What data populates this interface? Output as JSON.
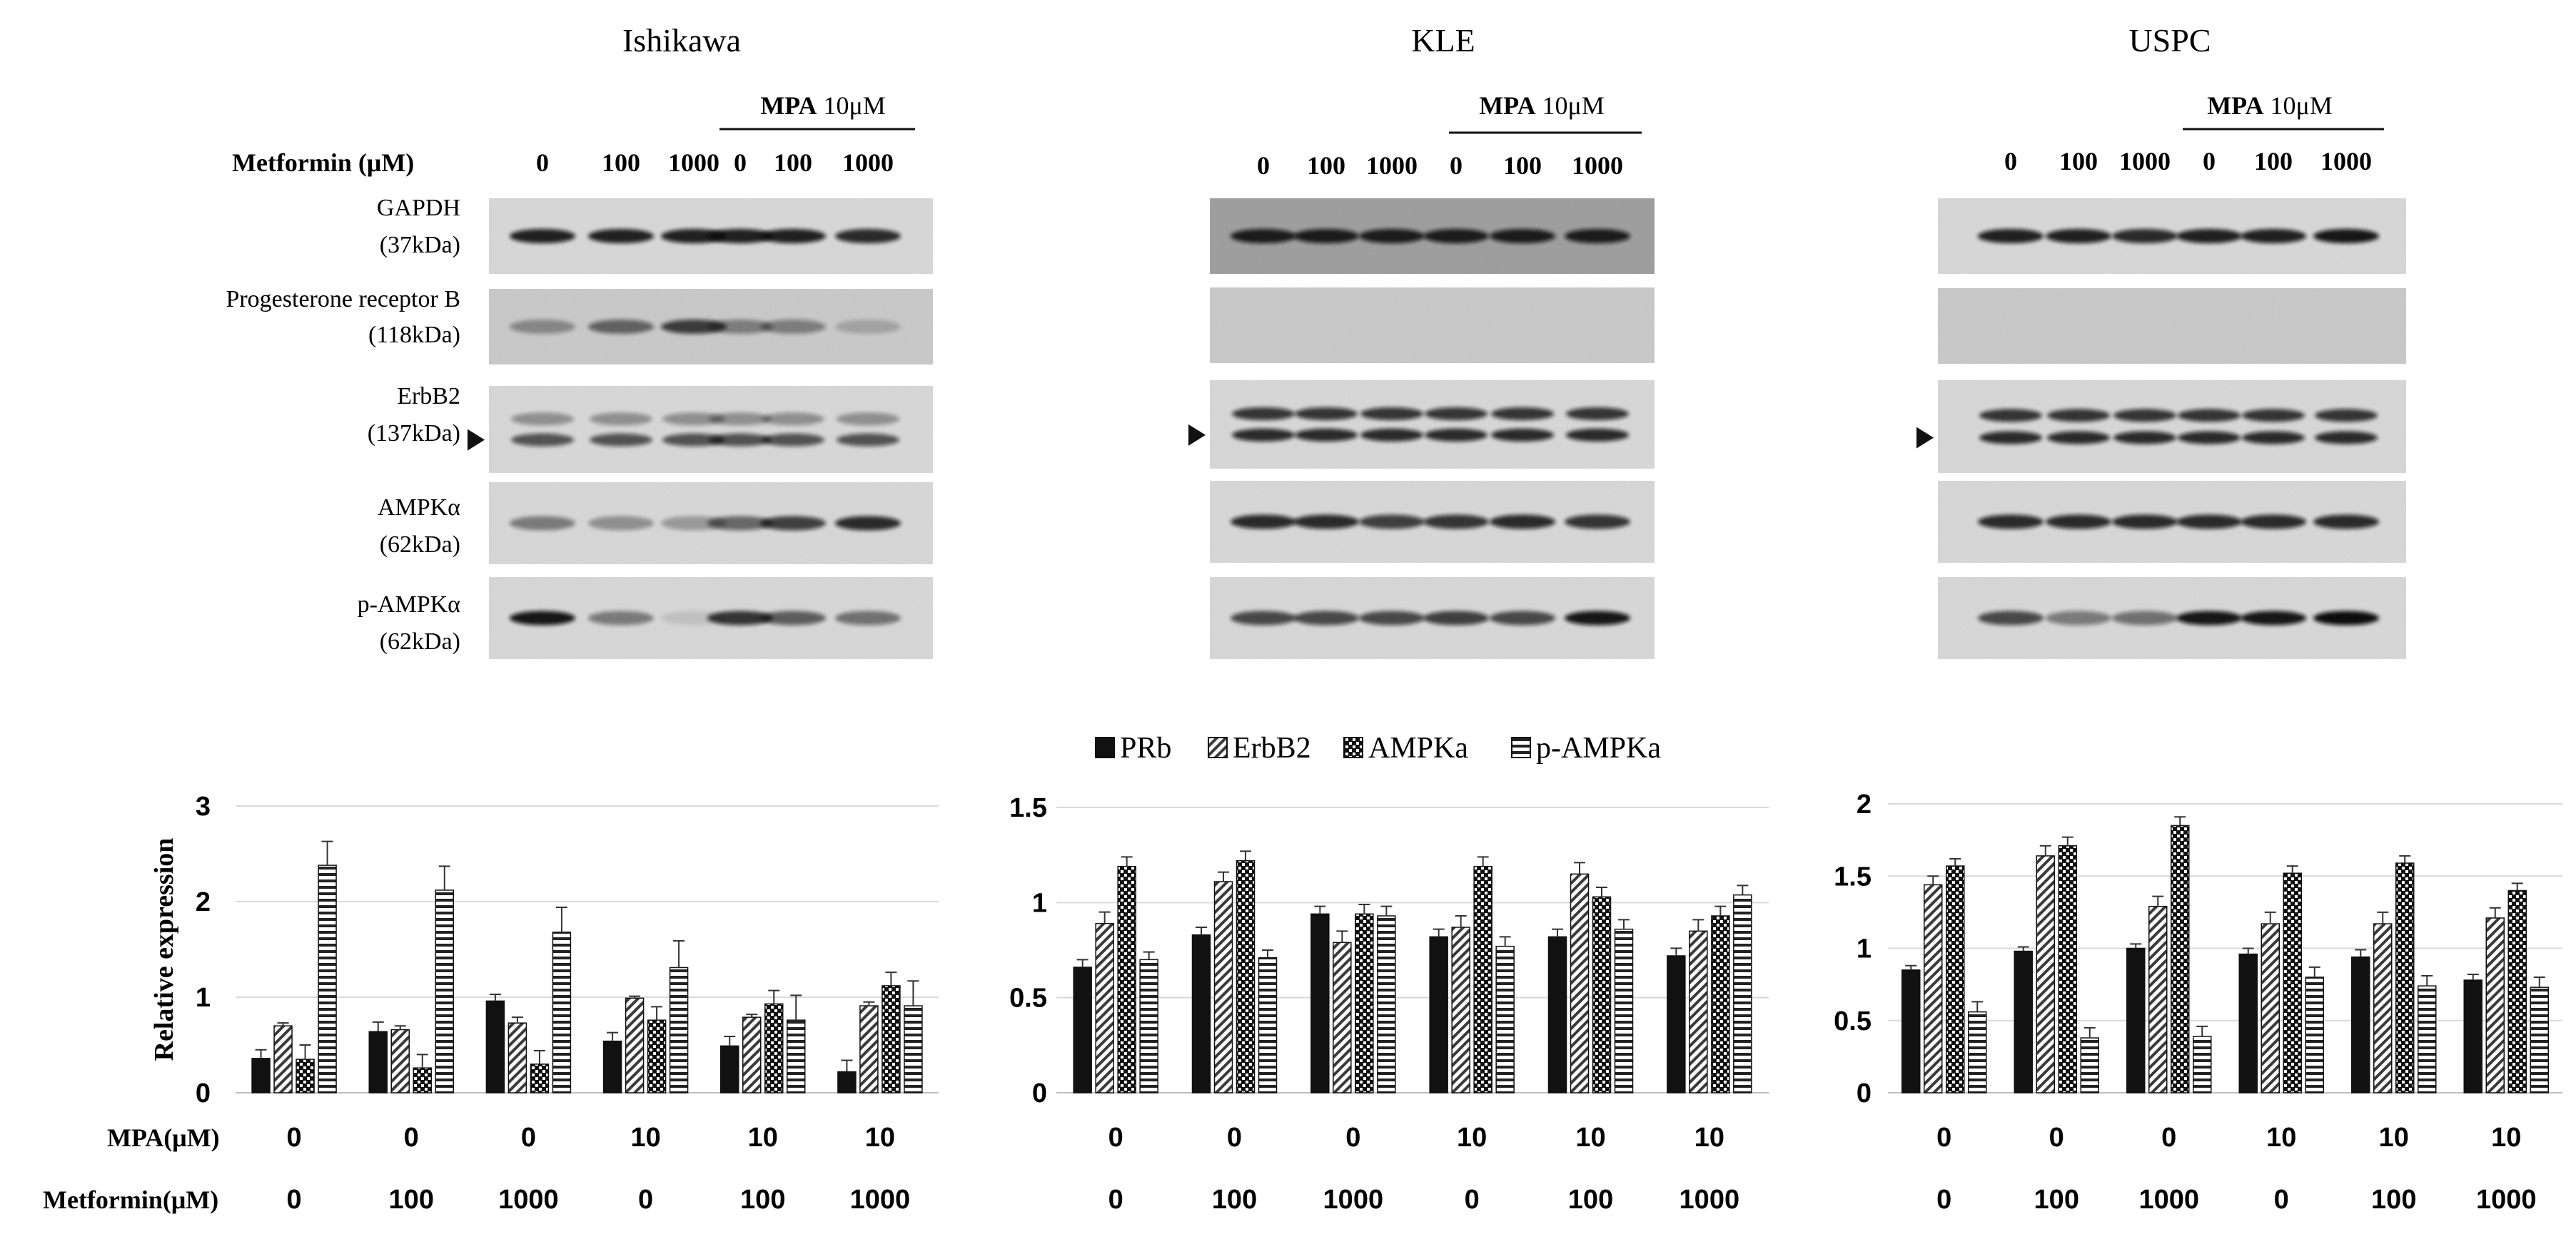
{
  "blots": [
    {
      "title": "Ishikawa",
      "header": {
        "metformin_label": "Metformin (μM)",
        "mpa_bold": "MPA",
        "mpa_rest": " 10μM",
        "lanes": [
          "0",
          "100",
          "1000",
          "0",
          "100",
          "1000"
        ]
      },
      "rows": [
        {
          "name": "GAPDH",
          "kda": "(37kDa)"
        },
        {
          "name": "Progesterone receptor B",
          "kda": "(118kDa)"
        },
        {
          "name": "ErbB2",
          "kda": "(137kDa)"
        },
        {
          "name": "AMPKα",
          "kda": "(62kDa)"
        },
        {
          "name": "p-AMPKα",
          "kda": "(62kDa)"
        }
      ]
    },
    {
      "title": "KLE",
      "header": {
        "metformin_label": "",
        "mpa_bold": "MPA",
        "mpa_rest": " 10μM",
        "lanes": [
          "0",
          "100",
          "1000",
          "0",
          "100",
          "1000"
        ]
      },
      "rows": []
    },
    {
      "title": "USPC",
      "header": {
        "metformin_label": "",
        "mpa_bold": "MPA",
        "mpa_rest": " 10μM",
        "lanes": [
          "0",
          "100",
          "1000",
          "0",
          "100",
          "1000"
        ]
      },
      "rows": []
    }
  ],
  "legend": [
    "PRb",
    "ErbB2",
    "AMPKa",
    "p-AMPKa"
  ],
  "row_labels": {
    "mpa": "MPA(μM)",
    "metformin": "Metformin(μM)"
  },
  "chart_data": [
    {
      "type": "bar",
      "ylabel": "Relative expression",
      "ylim": [
        0,
        3
      ],
      "yticks": [
        "0",
        "1",
        "2",
        "3"
      ],
      "groups": [
        {
          "mpa": "0",
          "metformin": "0"
        },
        {
          "mpa": "0",
          "metformin": "100"
        },
        {
          "mpa": "0",
          "metformin": "1000"
        },
        {
          "mpa": "10",
          "metformin": "0"
        },
        {
          "mpa": "10",
          "metformin": "100"
        },
        {
          "mpa": "10",
          "metformin": "1000"
        }
      ],
      "series": [
        {
          "name": "PRb",
          "values": [
            0.36,
            0.64,
            0.96,
            0.54,
            0.49,
            0.22
          ],
          "errors": [
            0.09,
            0.1,
            0.07,
            0.09,
            0.1,
            0.12
          ]
        },
        {
          "name": "ErbB2",
          "values": [
            0.7,
            0.66,
            0.73,
            0.99,
            0.79,
            0.91
          ],
          "errors": [
            0.03,
            0.04,
            0.06,
            0.02,
            0.03,
            0.04
          ]
        },
        {
          "name": "AMPKa",
          "values": [
            0.35,
            0.26,
            0.3,
            0.76,
            0.93,
            1.12
          ],
          "errors": [
            0.15,
            0.14,
            0.14,
            0.14,
            0.14,
            0.14
          ]
        },
        {
          "name": "p-AMPKa",
          "values": [
            2.38,
            2.12,
            1.68,
            1.31,
            0.76,
            0.91
          ],
          "errors": [
            0.25,
            0.25,
            0.26,
            0.28,
            0.26,
            0.26
          ]
        }
      ]
    },
    {
      "type": "bar",
      "ylabel": "",
      "ylim": [
        0,
        1.5
      ],
      "yticks": [
        "0",
        "0.5",
        "1",
        "1.5"
      ],
      "groups": [
        {
          "mpa": "0",
          "metformin": "0"
        },
        {
          "mpa": "0",
          "metformin": "100"
        },
        {
          "mpa": "0",
          "metformin": "1000"
        },
        {
          "mpa": "10",
          "metformin": "0"
        },
        {
          "mpa": "10",
          "metformin": "100"
        },
        {
          "mpa": "10",
          "metformin": "1000"
        }
      ],
      "series": [
        {
          "name": "PRb",
          "values": [
            0.66,
            0.83,
            0.94,
            0.82,
            0.82,
            0.72
          ],
          "errors": [
            0.04,
            0.04,
            0.04,
            0.04,
            0.04,
            0.04
          ]
        },
        {
          "name": "ErbB2",
          "values": [
            0.89,
            1.11,
            0.79,
            0.87,
            1.15,
            0.85
          ],
          "errors": [
            0.06,
            0.05,
            0.06,
            0.06,
            0.06,
            0.06
          ]
        },
        {
          "name": "AMPKa",
          "values": [
            1.19,
            1.22,
            0.94,
            1.19,
            1.03,
            0.93
          ],
          "errors": [
            0.05,
            0.05,
            0.05,
            0.05,
            0.05,
            0.05
          ]
        },
        {
          "name": "p-AMPKa",
          "values": [
            0.7,
            0.71,
            0.93,
            0.77,
            0.86,
            1.04
          ],
          "errors": [
            0.04,
            0.04,
            0.05,
            0.05,
            0.05,
            0.05
          ]
        }
      ]
    },
    {
      "type": "bar",
      "ylabel": "",
      "ylim": [
        0,
        2
      ],
      "yticks": [
        "0",
        "0.5",
        "1",
        "1.5",
        "2"
      ],
      "groups": [
        {
          "mpa": "0",
          "metformin": "0"
        },
        {
          "mpa": "0",
          "metformin": "100"
        },
        {
          "mpa": "0",
          "metformin": "1000"
        },
        {
          "mpa": "10",
          "metformin": "0"
        },
        {
          "mpa": "10",
          "metformin": "100"
        },
        {
          "mpa": "10",
          "metformin": "1000"
        }
      ],
      "series": [
        {
          "name": "PRb",
          "values": [
            0.85,
            0.98,
            1.0,
            0.96,
            0.94,
            0.78
          ],
          "errors": [
            0.03,
            0.03,
            0.03,
            0.04,
            0.05,
            0.04
          ]
        },
        {
          "name": "ErbB2",
          "values": [
            1.44,
            1.64,
            1.29,
            1.17,
            1.17,
            1.21
          ],
          "errors": [
            0.06,
            0.07,
            0.07,
            0.08,
            0.08,
            0.07
          ]
        },
        {
          "name": "AMPKa",
          "values": [
            1.57,
            1.71,
            1.85,
            1.52,
            1.59,
            1.4
          ],
          "errors": [
            0.05,
            0.06,
            0.06,
            0.05,
            0.05,
            0.05
          ]
        },
        {
          "name": "p-AMPKa",
          "values": [
            0.56,
            0.38,
            0.39,
            0.8,
            0.74,
            0.73
          ],
          "errors": [
            0.07,
            0.07,
            0.07,
            0.07,
            0.07,
            0.07
          ]
        }
      ]
    }
  ]
}
